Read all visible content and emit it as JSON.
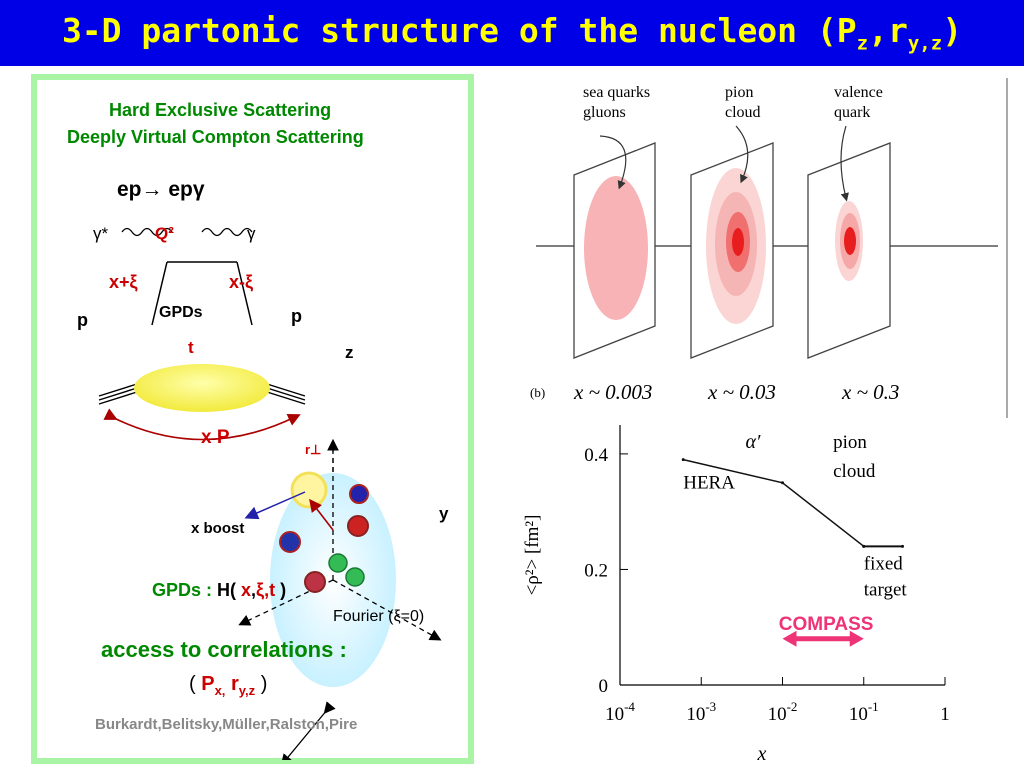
{
  "title": {
    "main": "3-D partonic structure of the nucleon (P",
    "sub1": "z",
    "sep": ",r",
    "sub2": "y,z",
    "close": ")"
  },
  "left": {
    "heading1": "Hard Exclusive Scattering",
    "heading2": "Deeply Virtual Compton Scattering",
    "reaction_a": "ep",
    "arrow": "→",
    "reaction_b": " epγ",
    "gamma_star": "γ*",
    "q2": "Q²",
    "gamma": "γ",
    "x_plus": "x+ξ",
    "x_minus": "x-ξ",
    "p_in": "p",
    "p_out": "p",
    "gpds_oval": "GPDs",
    "t": "t",
    "axis_z": "z",
    "axis_y": "y",
    "x_boost": "x boost",
    "xp": "x P",
    "r_perp": "r⊥",
    "gpds_formula_a": "GPDs : ",
    "gpds_formula_b": "H( ",
    "gpds_formula_x": "x",
    "gpds_formula_comma": ",",
    "gpds_formula_xi": "ξ",
    "gpds_formula_t": ",t",
    "gpds_formula_c": " )",
    "fourier": "Fourier (ξ=0)",
    "access": "access to correlations :",
    "corr_open": "( ",
    "corr_p": "P",
    "corr_psub": "x,",
    "corr_r": " r",
    "corr_rsub": "y,z",
    "corr_close": "  )",
    "authors": "Burkardt,Belitsky,Müller,Ralston,Pire"
  },
  "top_figure": {
    "labels": [
      "sea quarks\ngluons",
      "pion\ncloud",
      "valence\nquark"
    ],
    "panel_tag": "(b)",
    "x_values": [
      "x ~ 0.003",
      "x ~ 0.03",
      "x ~ 0.3"
    ]
  },
  "colors": {
    "title_bg": "#0000e6",
    "title_fg": "#ffff00",
    "panel_border": "#aaf5a5",
    "compass": "#ee3377"
  },
  "chart_data": {
    "type": "line",
    "x_scale": "log",
    "xlim": [
      0.0001,
      1
    ],
    "ylim": [
      0,
      0.45
    ],
    "xlabel": "x",
    "ylabel": "<ρ²>  [fm²]",
    "x_ticks": [
      "10-4",
      "10-3",
      "10-2",
      "10-1",
      "1"
    ],
    "y_ticks": [
      "0",
      "0.2",
      "0.4"
    ],
    "series": [
      {
        "x": [
          0.0006,
          0.01,
          0.1
        ],
        "y": [
          0.39,
          0.35,
          0.24
        ]
      },
      {
        "x": [
          0.1,
          0.3
        ],
        "y": [
          0.24,
          0.24
        ]
      }
    ],
    "annotations": {
      "alpha": "α′",
      "pion1": "pion",
      "pion2": "cloud",
      "hera": "HERA",
      "fixed1": "fixed",
      "fixed2": "target",
      "compass": "COMPASS"
    },
    "compass_range": [
      0.01,
      0.1
    ]
  }
}
